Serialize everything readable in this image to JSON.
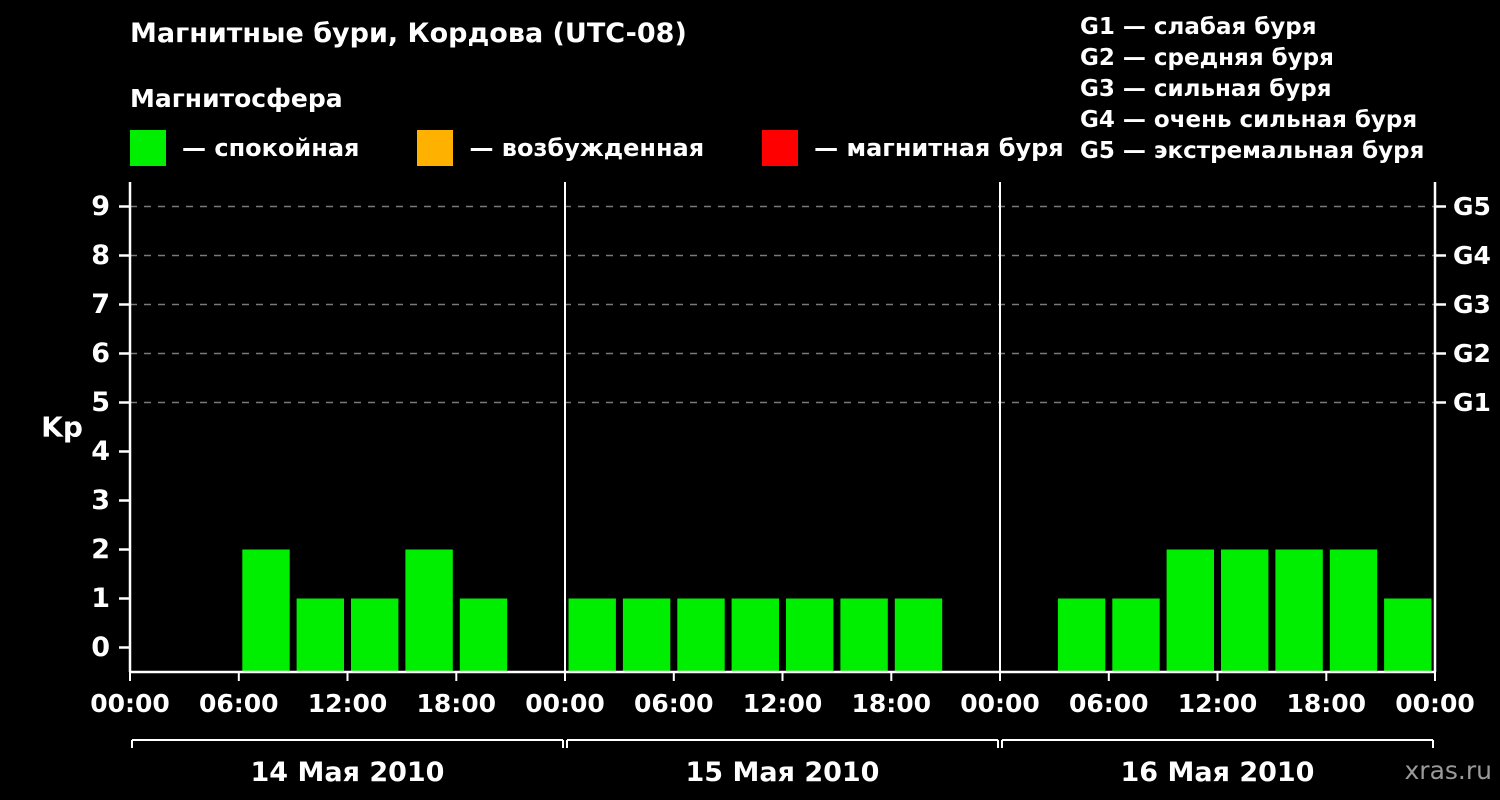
{
  "header": {
    "title": "Магнитные бури, Кордова (UTC-08)",
    "subtitle": "Магнитосфера"
  },
  "legend": [
    {
      "label": "— спокойная",
      "color": "#00ee00"
    },
    {
      "label": "— возбужденная",
      "color": "#ffb100"
    },
    {
      "label": "— магнитная буря",
      "color": "#ff0000"
    }
  ],
  "storm_scale": [
    "G1 — слабая буря",
    "G2 — средняя буря",
    "G3 — сильная буря",
    "G4 — очень сильная буря",
    "G5 — экстремальная буря"
  ],
  "watermark": "xras.ru",
  "chart_data": {
    "type": "bar",
    "title": "Магнитные бури, Кордова (UTC-08)",
    "ylabel": "Kp",
    "ylim": [
      -0.5,
      9.5
    ],
    "yticks": [
      0,
      1,
      2,
      3,
      4,
      5,
      6,
      7,
      8,
      9
    ],
    "grid_levels": [
      5,
      6,
      7,
      8,
      9
    ],
    "right_axis_ticks": [
      {
        "value": 5,
        "label": "G1"
      },
      {
        "value": 6,
        "label": "G2"
      },
      {
        "value": 7,
        "label": "G3"
      },
      {
        "value": 8,
        "label": "G4"
      },
      {
        "value": 9,
        "label": "G5"
      }
    ],
    "x_tick_hours": [
      "00:00",
      "06:00",
      "12:00",
      "18:00"
    ],
    "x_end_label": "00:00",
    "bar_interval_hours": 3,
    "colors": {
      "quiet": "#00ee00",
      "excited": "#ffb100",
      "storm": "#ff0000"
    },
    "color_thresholds": {
      "excited_min": 4,
      "storm_min": 5
    },
    "grid_color": "#7a7a7a",
    "days": [
      {
        "date": "14 Мая 2010",
        "values": [
          0,
          0,
          2,
          1,
          1,
          2,
          1,
          0
        ]
      },
      {
        "date": "15 Мая 2010",
        "values": [
          1,
          1,
          1,
          1,
          1,
          1,
          1,
          0
        ]
      },
      {
        "date": "16 Мая 2010",
        "values": [
          0,
          1,
          1,
          2,
          2,
          2,
          2,
          1
        ]
      }
    ]
  }
}
